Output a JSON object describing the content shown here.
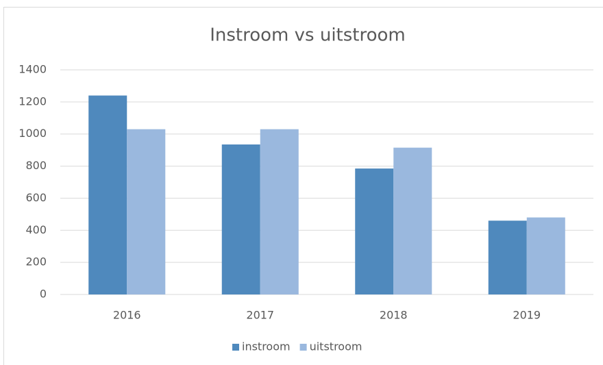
{
  "chart_data": {
    "type": "bar",
    "title": "Instroom vs uitstroom",
    "categories": [
      "2016",
      "2017",
      "2018",
      "2019"
    ],
    "series": [
      {
        "name": "instroom",
        "color": "#4f89bd",
        "values": [
          1240,
          935,
          785,
          460
        ]
      },
      {
        "name": "uitstroom",
        "color": "#9ab8de",
        "values": [
          1030,
          1030,
          915,
          480
        ]
      }
    ],
    "ylim": [
      0,
      1400
    ],
    "yticks": [
      0,
      200,
      400,
      600,
      800,
      1000,
      1200,
      1400
    ],
    "grid": true,
    "legend": "bottom"
  }
}
